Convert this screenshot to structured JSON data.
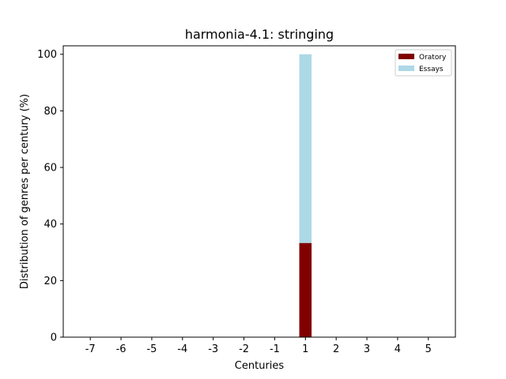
{
  "chart_data": {
    "type": "bar",
    "stacked": true,
    "title": "harmonia-4.1: stringing",
    "xlabel": "Centuries",
    "ylabel": "Distribution of genres per century (%)",
    "categories": [
      "-7",
      "-6",
      "-5",
      "-4",
      "-3",
      "-2",
      "-1",
      "1",
      "2",
      "3",
      "4",
      "5"
    ],
    "series": [
      {
        "name": "Oratory",
        "color": "#800000",
        "values": [
          0,
          0,
          0,
          0,
          0,
          0,
          0,
          33.3,
          0,
          0,
          0,
          0
        ]
      },
      {
        "name": "Essays",
        "color": "#add8e6",
        "values": [
          0,
          0,
          0,
          0,
          0,
          0,
          0,
          66.7,
          0,
          0,
          0,
          0
        ]
      }
    ],
    "ylim": [
      0,
      103
    ],
    "yticks": [
      0,
      20,
      40,
      60,
      80,
      100
    ],
    "grid": false,
    "legend_position": "top-right"
  }
}
